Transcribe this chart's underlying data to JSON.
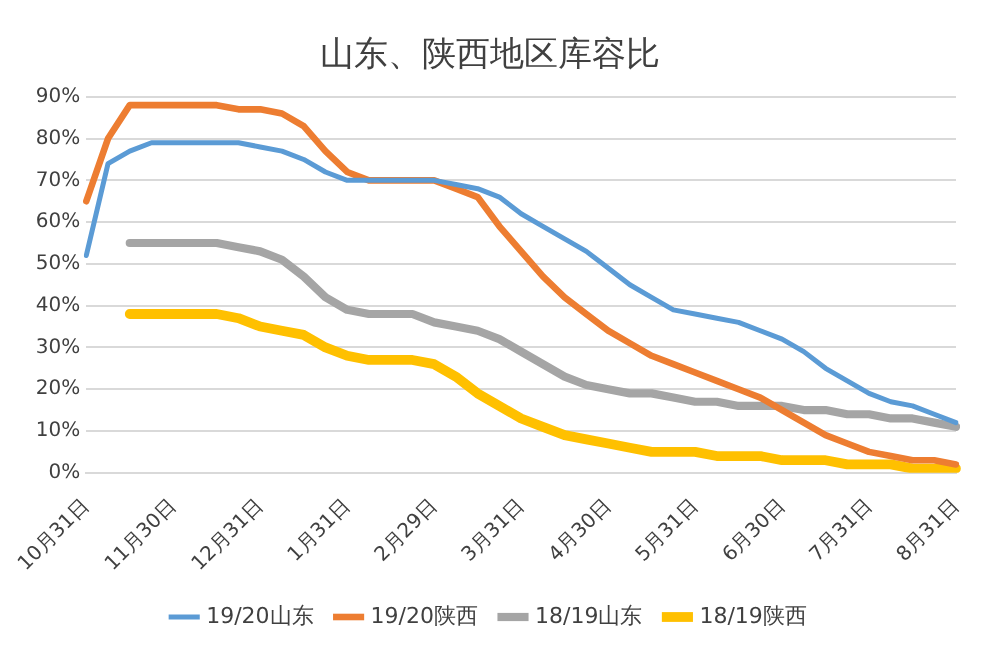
{
  "chart_data": {
    "type": "line",
    "title": "山东、陕西地区库容比",
    "categories": [
      "10月31日",
      null,
      null,
      null,
      "11月30日",
      null,
      null,
      null,
      "12月31日",
      null,
      null,
      null,
      "1月31日",
      null,
      null,
      null,
      "2月29日",
      null,
      null,
      null,
      "3月31日",
      null,
      null,
      null,
      "4月30日",
      null,
      null,
      null,
      "5月31日",
      null,
      null,
      null,
      "6月30日",
      null,
      null,
      null,
      "7月31日",
      null,
      null,
      null,
      "8月31日"
    ],
    "series": [
      {
        "name": "19/20山东",
        "color": "#5b9bd5",
        "values": [
          52,
          74,
          77,
          79,
          79,
          79,
          79,
          79,
          78,
          77,
          75,
          72,
          70,
          70,
          70,
          70,
          70,
          69,
          68,
          66,
          62,
          59,
          56,
          53,
          49,
          45,
          42,
          39,
          38,
          37,
          36,
          34,
          32,
          29,
          25,
          22,
          19,
          17,
          16,
          14,
          12
        ]
      },
      {
        "name": "19/20陕西",
        "color": "#ed7d31",
        "values": [
          65,
          80,
          88,
          88,
          88,
          88,
          88,
          87,
          87,
          86,
          83,
          77,
          72,
          70,
          70,
          70,
          70,
          68,
          66,
          59,
          53,
          47,
          42,
          38,
          34,
          31,
          28,
          26,
          24,
          22,
          20,
          18,
          15,
          12,
          9,
          7,
          5,
          4,
          3,
          3,
          2
        ]
      },
      {
        "name": "18/19山东",
        "color": "#a5a5a5",
        "values": [
          null,
          null,
          55,
          55,
          55,
          55,
          55,
          54,
          53,
          51,
          47,
          42,
          39,
          38,
          38,
          38,
          36,
          35,
          34,
          32,
          29,
          26,
          23,
          21,
          20,
          19,
          19,
          18,
          17,
          17,
          16,
          16,
          16,
          15,
          15,
          14,
          14,
          13,
          13,
          12,
          11
        ]
      },
      {
        "name": "18/19陕西",
        "color": "#ffc000",
        "values": [
          null,
          null,
          38,
          38,
          38,
          38,
          38,
          37,
          35,
          34,
          33,
          30,
          28,
          27,
          27,
          27,
          26,
          23,
          19,
          16,
          13,
          11,
          9,
          8,
          7,
          6,
          5,
          5,
          5,
          4,
          4,
          4,
          3,
          3,
          3,
          2,
          2,
          2,
          1,
          1,
          1
        ]
      }
    ],
    "ylim": [
      0,
      90
    ],
    "yticks": [
      {
        "value": 0,
        "label": "0%"
      },
      {
        "value": 10,
        "label": "10%"
      },
      {
        "value": 20,
        "label": "20%"
      },
      {
        "value": 30,
        "label": "30%"
      },
      {
        "value": 40,
        "label": "40%"
      },
      {
        "value": 50,
        "label": "50%"
      },
      {
        "value": 60,
        "label": "60%"
      },
      {
        "value": 70,
        "label": "70%"
      },
      {
        "value": 80,
        "label": "80%"
      },
      {
        "value": 90,
        "label": "90%"
      }
    ],
    "grid": "y",
    "legend": "bottom",
    "marker": "none",
    "line_style": "solid"
  }
}
